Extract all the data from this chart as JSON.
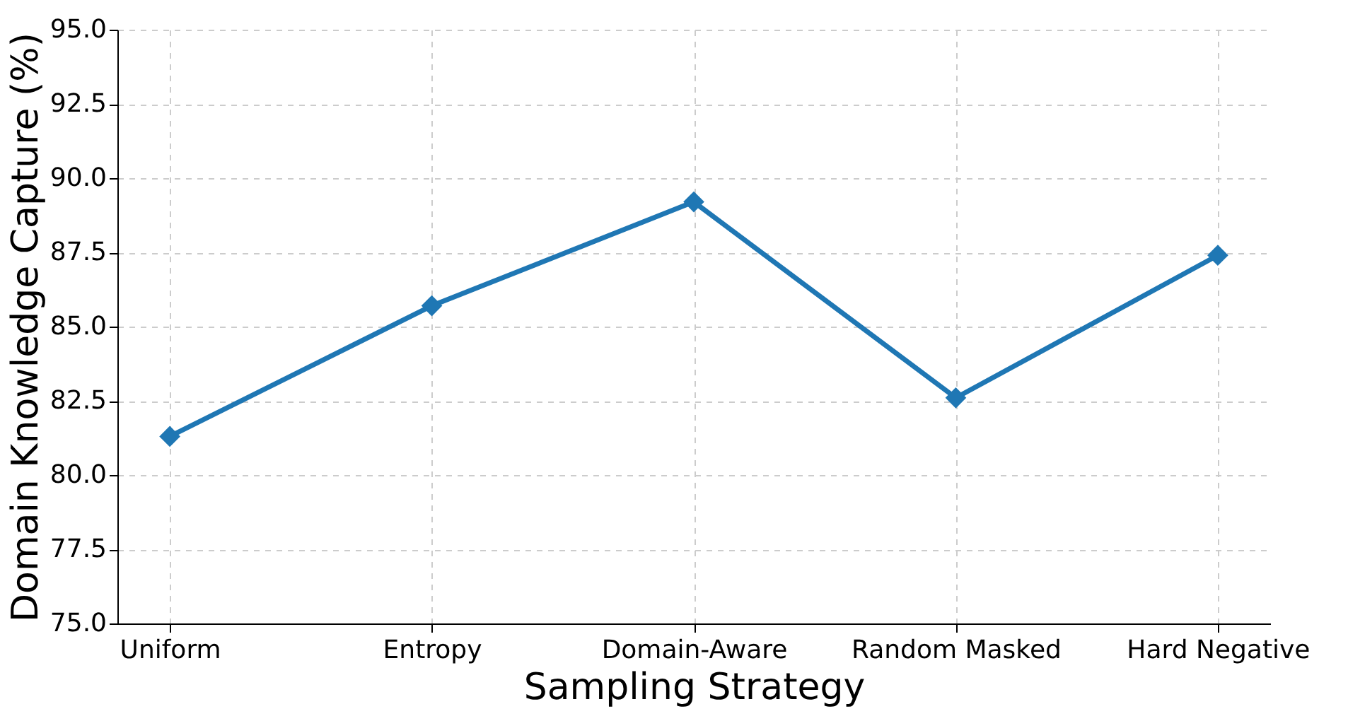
{
  "chart_data": {
    "type": "line",
    "xlabel": "Sampling Strategy",
    "ylabel": "Domain Knowledge Capture (%)",
    "categories": [
      "Uniform",
      "Entropy",
      "Domain-Aware",
      "Random Masked",
      "Hard Negative"
    ],
    "series": [
      {
        "color": "#1f77b4",
        "values": [
          81.3,
          85.7,
          89.2,
          82.6,
          87.4
        ]
      }
    ],
    "ylim": [
      75,
      95
    ],
    "yticks": [
      {
        "value": 75,
        "label": "75.0"
      },
      {
        "value": 77.5,
        "label": "77.5"
      },
      {
        "value": 80,
        "label": "80.0"
      },
      {
        "value": 82.5,
        "label": "82.5"
      },
      {
        "value": 85,
        "label": "85.0"
      },
      {
        "value": 87.5,
        "label": "87.5"
      },
      {
        "value": 90,
        "label": "90.0"
      },
      {
        "value": 92.5,
        "label": "92.5"
      },
      {
        "value": 95,
        "label": "95.0"
      }
    ],
    "grid": true,
    "marker": "diamond",
    "line_style": "solid",
    "legend": false
  }
}
